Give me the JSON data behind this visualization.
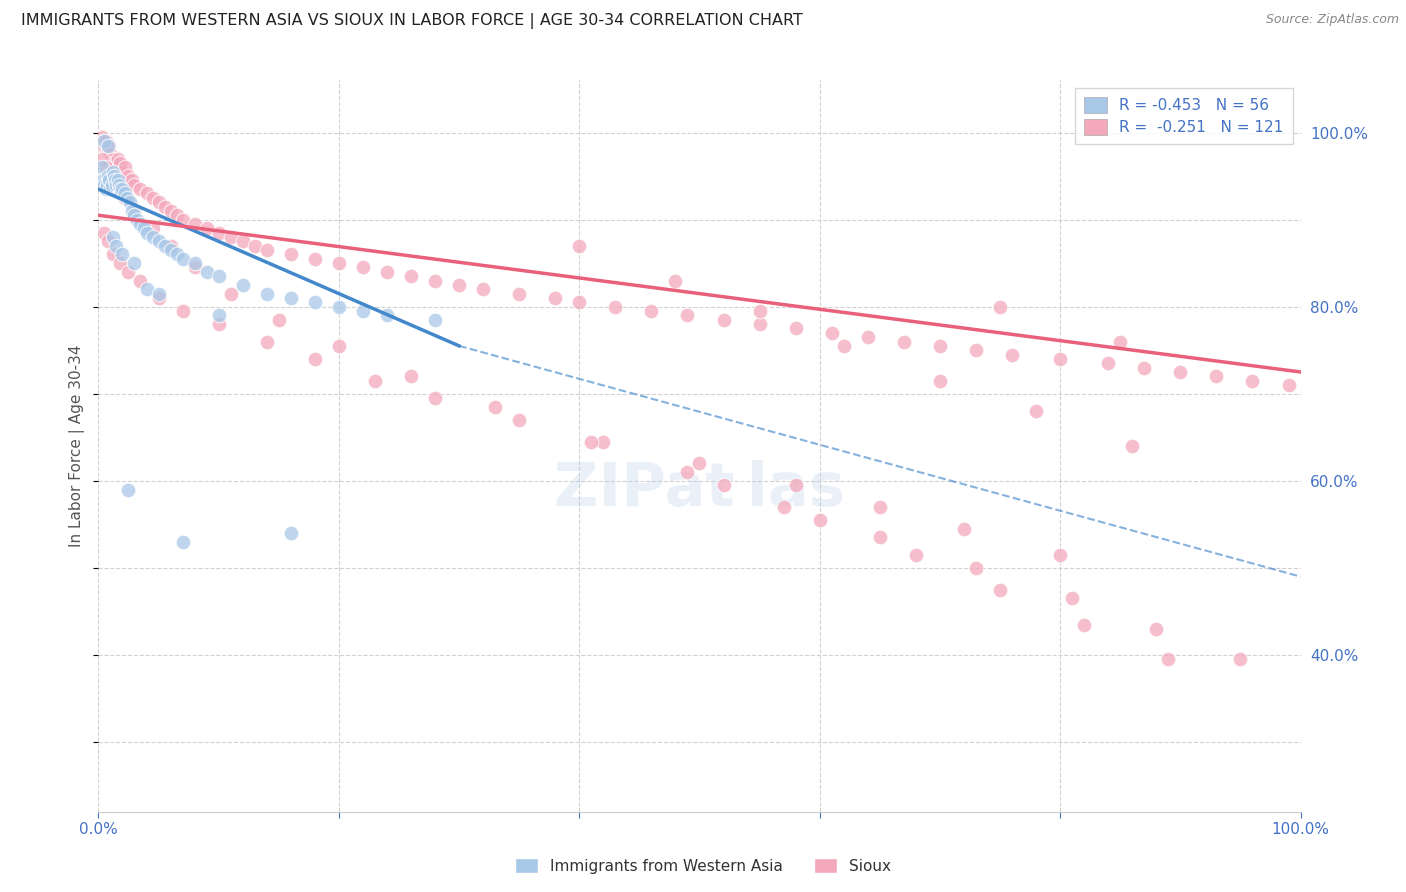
{
  "title": "IMMIGRANTS FROM WESTERN ASIA VS SIOUX IN LABOR FORCE | AGE 30-34 CORRELATION CHART",
  "source": "Source: ZipAtlas.com",
  "ylabel": "In Labor Force | Age 30-34",
  "y_ticks_right": [
    1.0,
    0.8,
    0.6,
    0.4
  ],
  "y_tick_labels_right": [
    "100.0%",
    "80.0%",
    "60.0%",
    "40.0%"
  ],
  "xlim": [
    0.0,
    1.0
  ],
  "ylim": [
    0.22,
    1.06
  ],
  "blue_R": -0.453,
  "blue_N": 56,
  "pink_R": -0.251,
  "pink_N": 121,
  "blue_color": "#a8c8e8",
  "pink_color": "#f4a8bc",
  "blue_line_color": "#4488cc",
  "pink_line_color": "#e8607a",
  "blue_line_solid_x0": 0.0,
  "blue_line_solid_x1": 0.3,
  "blue_line_y0": 0.935,
  "blue_line_y1": 0.755,
  "blue_line_full_y1": 0.49,
  "pink_line_y0": 0.905,
  "pink_line_y1": 0.725,
  "legend_label_blue": "Immigrants from Western Asia",
  "legend_label_pink": "Sioux",
  "watermark": "ZIPat las",
  "background_color": "#ffffff",
  "grid_color": "#cccccc",
  "blue_scatter_x": [
    0.003,
    0.004,
    0.005,
    0.006,
    0.007,
    0.008,
    0.009,
    0.01,
    0.011,
    0.012,
    0.013,
    0.014,
    0.015,
    0.016,
    0.017,
    0.018,
    0.019,
    0.02,
    0.022,
    0.024,
    0.026,
    0.028,
    0.03,
    0.032,
    0.035,
    0.038,
    0.04,
    0.045,
    0.05,
    0.055,
    0.06,
    0.065,
    0.07,
    0.08,
    0.09,
    0.1,
    0.12,
    0.14,
    0.16,
    0.18,
    0.2,
    0.22,
    0.24,
    0.28,
    0.005,
    0.008,
    0.012,
    0.015,
    0.02,
    0.025,
    0.03,
    0.04,
    0.05,
    0.07,
    0.1,
    0.16
  ],
  "blue_scatter_y": [
    0.96,
    0.945,
    0.94,
    0.935,
    0.94,
    0.95,
    0.945,
    0.935,
    0.94,
    0.955,
    0.95,
    0.945,
    0.94,
    0.945,
    0.94,
    0.935,
    0.93,
    0.935,
    0.93,
    0.925,
    0.92,
    0.91,
    0.905,
    0.9,
    0.895,
    0.89,
    0.885,
    0.88,
    0.875,
    0.87,
    0.865,
    0.86,
    0.855,
    0.85,
    0.84,
    0.835,
    0.825,
    0.815,
    0.81,
    0.805,
    0.8,
    0.795,
    0.79,
    0.785,
    0.99,
    0.985,
    0.88,
    0.87,
    0.86,
    0.59,
    0.85,
    0.82,
    0.815,
    0.53,
    0.79,
    0.54
  ],
  "pink_scatter_x": [
    0.003,
    0.004,
    0.005,
    0.006,
    0.007,
    0.008,
    0.009,
    0.01,
    0.011,
    0.012,
    0.014,
    0.016,
    0.018,
    0.02,
    0.022,
    0.025,
    0.028,
    0.03,
    0.035,
    0.04,
    0.045,
    0.05,
    0.055,
    0.06,
    0.065,
    0.07,
    0.08,
    0.09,
    0.1,
    0.11,
    0.12,
    0.13,
    0.14,
    0.16,
    0.18,
    0.2,
    0.22,
    0.24,
    0.26,
    0.28,
    0.3,
    0.32,
    0.35,
    0.38,
    0.4,
    0.43,
    0.46,
    0.49,
    0.52,
    0.55,
    0.58,
    0.61,
    0.64,
    0.67,
    0.7,
    0.73,
    0.76,
    0.8,
    0.84,
    0.87,
    0.9,
    0.93,
    0.96,
    0.99,
    0.005,
    0.008,
    0.012,
    0.018,
    0.025,
    0.035,
    0.05,
    0.07,
    0.1,
    0.14,
    0.18,
    0.23,
    0.28,
    0.35,
    0.42,
    0.5,
    0.58,
    0.65,
    0.72,
    0.8,
    0.003,
    0.006,
    0.01,
    0.015,
    0.022,
    0.03,
    0.045,
    0.06,
    0.08,
    0.11,
    0.15,
    0.2,
    0.26,
    0.33,
    0.41,
    0.49,
    0.57,
    0.65,
    0.73,
    0.81,
    0.88,
    0.95,
    0.52,
    0.6,
    0.68,
    0.75,
    0.82,
    0.89,
    0.75,
    0.85,
    0.4,
    0.48,
    0.55,
    0.62,
    0.7,
    0.78,
    0.86
  ],
  "pink_scatter_y": [
    0.995,
    0.99,
    0.985,
    0.99,
    0.985,
    0.98,
    0.985,
    0.975,
    0.97,
    0.965,
    0.96,
    0.97,
    0.965,
    0.955,
    0.96,
    0.95,
    0.945,
    0.94,
    0.935,
    0.93,
    0.925,
    0.92,
    0.915,
    0.91,
    0.905,
    0.9,
    0.895,
    0.89,
    0.885,
    0.88,
    0.875,
    0.87,
    0.865,
    0.86,
    0.855,
    0.85,
    0.845,
    0.84,
    0.835,
    0.83,
    0.825,
    0.82,
    0.815,
    0.81,
    0.805,
    0.8,
    0.795,
    0.79,
    0.785,
    0.78,
    0.775,
    0.77,
    0.765,
    0.76,
    0.755,
    0.75,
    0.745,
    0.74,
    0.735,
    0.73,
    0.725,
    0.72,
    0.715,
    0.71,
    0.885,
    0.875,
    0.86,
    0.85,
    0.84,
    0.83,
    0.81,
    0.795,
    0.78,
    0.76,
    0.74,
    0.715,
    0.695,
    0.67,
    0.645,
    0.62,
    0.595,
    0.57,
    0.545,
    0.515,
    0.97,
    0.96,
    0.95,
    0.94,
    0.925,
    0.91,
    0.89,
    0.87,
    0.845,
    0.815,
    0.785,
    0.755,
    0.72,
    0.685,
    0.645,
    0.61,
    0.57,
    0.535,
    0.5,
    0.465,
    0.43,
    0.395,
    0.595,
    0.555,
    0.515,
    0.475,
    0.435,
    0.395,
    0.8,
    0.76,
    0.87,
    0.83,
    0.795,
    0.755,
    0.715,
    0.68,
    0.64
  ]
}
